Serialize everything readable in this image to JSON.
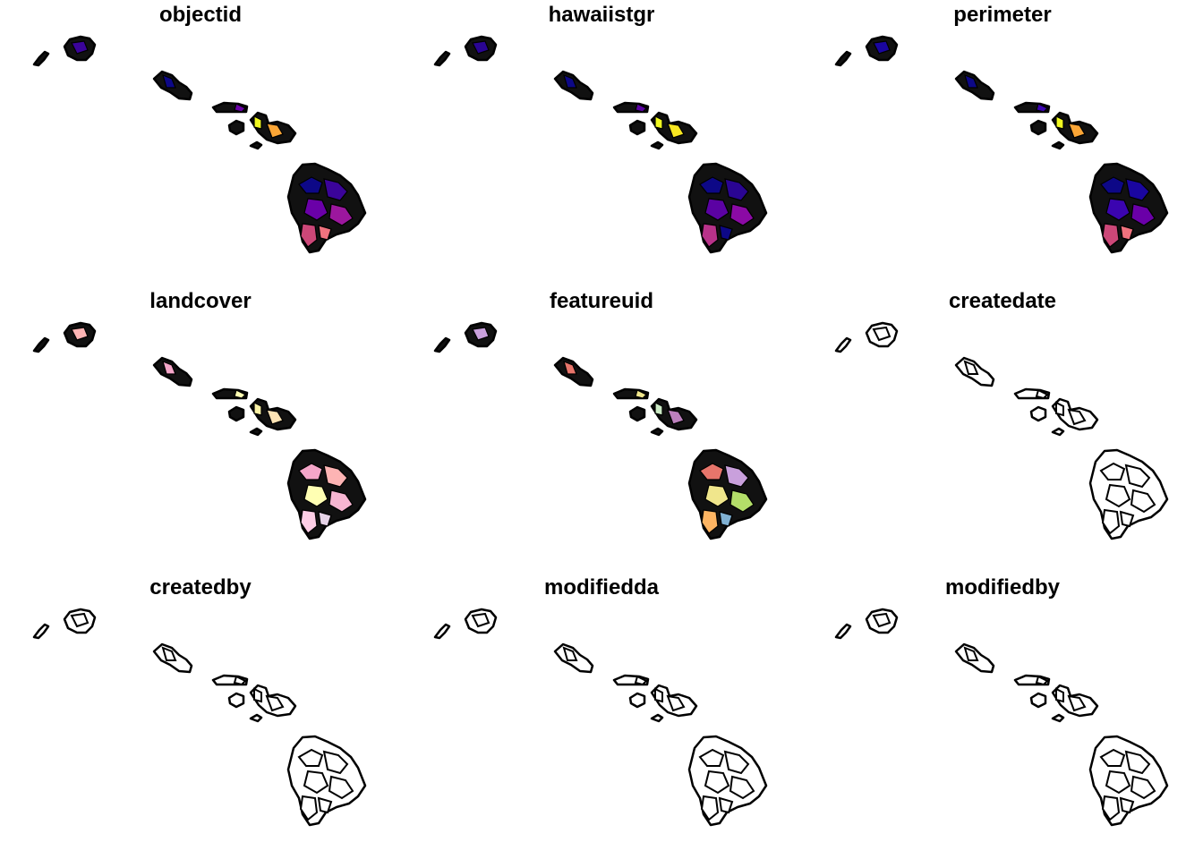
{
  "panels": [
    {
      "title": "objectid",
      "palette": [
        "#0d0887",
        "#3b049a",
        "#6a00a8",
        "#9c179e",
        "#cc4778",
        "#f0727e",
        "#fca636",
        "#f0f921"
      ]
    },
    {
      "title": "hawaiistgr",
      "palette": [
        "#0d0887",
        "#2a0593",
        "#5b02a3",
        "#8b0aa5",
        "#b83289",
        "#0d0887",
        "#f9e721",
        "#f0f921"
      ]
    },
    {
      "title": "perimeter",
      "palette": [
        "#0d0887",
        "#1a06a0",
        "#3b04b0",
        "#6a00a8",
        "#cc4778",
        "#f0727e",
        "#fca636",
        "#f0f921"
      ]
    },
    {
      "title": "landcover",
      "palette": [
        "#f4a6c9",
        "#fdb4b4",
        "#ffffb3",
        "#f7b6d2",
        "#fccde5",
        "#e7d4e8",
        "#ffe4b5",
        "#f9f1a5"
      ]
    },
    {
      "title": "featureuid",
      "palette": [
        "#e7756b",
        "#c9a0dc",
        "#f0e68c",
        "#b3de69",
        "#fdb462",
        "#80b1d3",
        "#bc80bd",
        "#ccebc5"
      ]
    },
    {
      "title": "createdate",
      "palette": [
        "#ffffff"
      ]
    },
    {
      "title": "createdby",
      "palette": [
        "#ffffff"
      ]
    },
    {
      "title": "modifiedda",
      "palette": [
        "#ffffff"
      ]
    },
    {
      "title": "modifiedby",
      "palette": [
        "#ffffff"
      ]
    }
  ]
}
